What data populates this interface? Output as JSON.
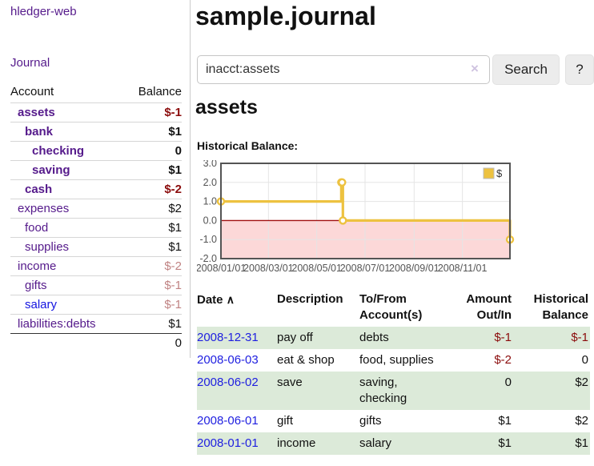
{
  "sidebar": {
    "app_title": "hledger-web",
    "journal_link": "Journal",
    "table": {
      "header_account": "Account",
      "header_balance": "Balance"
    },
    "accounts": [
      {
        "name": "assets",
        "balance": "$-1",
        "depth": 1
      },
      {
        "name": "bank",
        "balance": "$1",
        "depth": 2
      },
      {
        "name": "checking",
        "balance": "0",
        "depth": 3
      },
      {
        "name": "saving",
        "balance": "$1",
        "depth": 3
      },
      {
        "name": "cash",
        "balance": "$-2",
        "depth": 2
      },
      {
        "name": "expenses",
        "balance": "$2",
        "depth": 1
      },
      {
        "name": "food",
        "balance": "$1",
        "depth": 2
      },
      {
        "name": "supplies",
        "balance": "$1",
        "depth": 2
      },
      {
        "name": "income",
        "balance": "$-2",
        "depth": 1
      },
      {
        "name": "gifts",
        "balance": "$-1",
        "depth": 2
      },
      {
        "name": "salary",
        "balance": "$-1",
        "depth": 2
      },
      {
        "name": "liabilities:debts",
        "balance": "$1",
        "depth": 1
      }
    ],
    "total": "0"
  },
  "main": {
    "title": "sample.journal",
    "search": {
      "value": "inacct:assets",
      "button": "Search",
      "help": "?"
    },
    "account_heading": "assets",
    "chart_label": "Historical Balance:"
  },
  "icons": {
    "clear": "×",
    "sort_asc": "∧",
    "legend_swatch": "yellow-square"
  },
  "chart_data": {
    "type": "line",
    "step": true,
    "title": "Historical Balance:",
    "series": [
      {
        "name": "$",
        "color": "#edc240",
        "points": [
          [
            "2008-01-01",
            1.0
          ],
          [
            "2008-06-01",
            2.0
          ],
          [
            "2008-06-02",
            2.0
          ],
          [
            "2008-06-03",
            0.0
          ],
          [
            "2008-12-31",
            -1.0
          ]
        ]
      }
    ],
    "ylim": [
      -2.0,
      3.0
    ],
    "yticks": [
      3.0,
      2.0,
      1.0,
      0.0,
      -1.0,
      -2.0
    ],
    "xtick_labels": [
      "2008/01/01",
      "2008/03/01",
      "2008/05/01",
      "2008/07/01",
      "2008/09/01",
      "2008/11/01"
    ],
    "x_epoch": "2008-01-01",
    "x_span_days": 365,
    "negative_region": {
      "fill": "#fcd8d8",
      "zero_line": "#a01010"
    },
    "legend": {
      "label": "$",
      "position": "top-right"
    },
    "grid_color": "#e5e5e5",
    "border_color": "#545454",
    "axis_label_color": "#545454"
  },
  "journal": {
    "headers": {
      "date": "Date",
      "description": "Description",
      "accounts": "To/From Account(s)",
      "amount": "Amount Out/In",
      "balance": "Historical Balance"
    },
    "rows": [
      {
        "date": "2008-12-31",
        "description": "pay off",
        "accounts": "debts",
        "amount": "$-1",
        "balance": "$-1"
      },
      {
        "date": "2008-06-03",
        "description": "eat & shop",
        "accounts": "food, supplies",
        "amount": "$-2",
        "balance": "0"
      },
      {
        "date": "2008-06-02",
        "description": "save",
        "accounts": "saving, checking",
        "amount": "0",
        "balance": "$2"
      },
      {
        "date": "2008-06-01",
        "description": "gift",
        "accounts": "gifts",
        "amount": "$1",
        "balance": "$2"
      },
      {
        "date": "2008-01-01",
        "description": "income",
        "accounts": "salary",
        "amount": "$1",
        "balance": "$1"
      }
    ]
  }
}
